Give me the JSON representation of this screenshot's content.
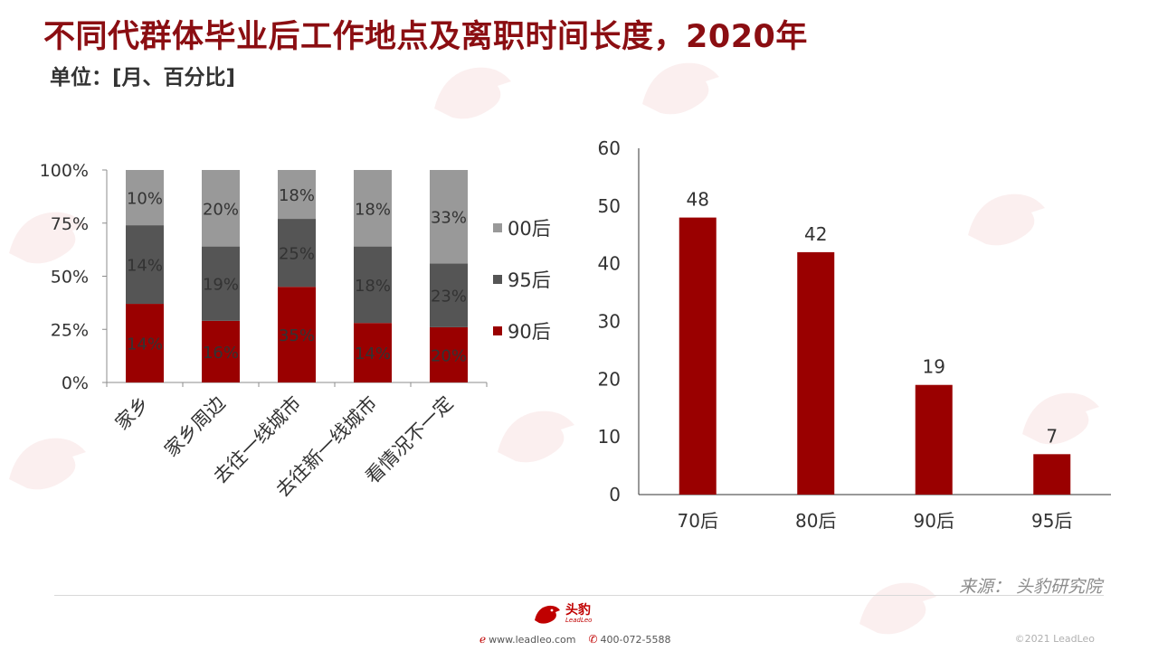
{
  "title": "不同代群体毕业后工作地点及离职时间长度，2020年",
  "subtitle": "单位：[月、百分比]",
  "chart_data": [
    {
      "type": "bar",
      "stacked": true,
      "categories": [
        "家乡",
        "家乡周边",
        "去往一线城市",
        "去往新一线城市",
        "看情况不一定"
      ],
      "series": [
        {
          "name": "90后",
          "color": "#9a0000",
          "values": [
            37,
            29,
            45,
            28,
            26
          ],
          "labels": [
            "14%",
            "16%",
            "35%",
            "14%",
            "20%"
          ]
        },
        {
          "name": "95后",
          "color": "#555555",
          "values": [
            37,
            35,
            32,
            36,
            30
          ],
          "labels": [
            "14%",
            "19%",
            "25%",
            "18%",
            "23%"
          ]
        },
        {
          "name": "00后",
          "color": "#999999",
          "values": [
            26,
            36,
            23,
            36,
            44
          ],
          "labels": [
            "10%",
            "20%",
            "18%",
            "18%",
            "33%"
          ]
        }
      ],
      "yticks": [
        "0%",
        "25%",
        "50%",
        "75%",
        "100%"
      ],
      "ylim": [
        0,
        100
      ],
      "legend_position": "right"
    },
    {
      "type": "bar",
      "categories": [
        "70后",
        "80后",
        "90后",
        "95后"
      ],
      "values": [
        48,
        42,
        19,
        7
      ],
      "color": "#9a0000",
      "yticks": [
        "0",
        "10",
        "20",
        "30",
        "40",
        "50",
        "60"
      ],
      "ylim": [
        0,
        60
      ]
    }
  ],
  "source": "来源：  头豹研究院",
  "footer": {
    "logo_text": "头豹",
    "logo_sub": "LeadLeo",
    "website": "www.leadleo.com",
    "phone": "400-072-5588",
    "copyright": "©2021 LeadLeo"
  }
}
